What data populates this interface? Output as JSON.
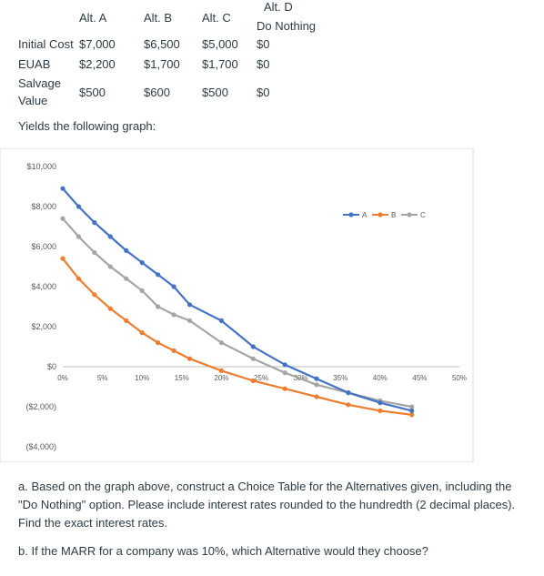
{
  "table": {
    "headers": {
      "alt_a": "Alt. A",
      "alt_b": "Alt. B",
      "alt_c": "Alt. C",
      "alt_d_line1": "Alt. D",
      "alt_d_line2": "Do Nothing"
    },
    "rows": [
      {
        "label": "Initial Cost",
        "a": "$7,000",
        "b": "$6,500",
        "c": "$5,000",
        "d": "$0"
      },
      {
        "label": "EUAB",
        "a": "$2,200",
        "b": "$1,700",
        "c": "$1,700",
        "d": "$0"
      },
      {
        "label_line1": "Salvage",
        "label_line2": "Value",
        "a": "$500",
        "b": "$600",
        "c": "$500",
        "d": "$0"
      }
    ]
  },
  "caption": "Yields the following graph:",
  "chart_data": {
    "type": "line",
    "x": [
      0,
      2,
      4,
      6,
      8,
      10,
      12,
      14,
      16,
      20,
      24,
      28,
      32,
      36,
      40,
      44
    ],
    "x_ticks": [
      "0%",
      "5%",
      "10%",
      "15%",
      "20%",
      "25%",
      "30%",
      "35%",
      "40%",
      "45%",
      "50%"
    ],
    "x_tick_values": [
      0,
      5,
      10,
      15,
      20,
      25,
      30,
      35,
      40,
      45,
      50
    ],
    "y_ticks": [
      "$10,000",
      "$8,000",
      "$6,000",
      "$4,000",
      "$2,000",
      "$0",
      "($2,000)",
      "($4,000)"
    ],
    "y_tick_values": [
      10000,
      8000,
      6000,
      4000,
      2000,
      0,
      -2000,
      -4000
    ],
    "ylim": [
      -4000,
      10000
    ],
    "xlim": [
      0,
      50
    ],
    "legend_position": "top-right",
    "series": [
      {
        "name": "A",
        "color": "#4472c4",
        "values": [
          8900,
          8000,
          7200,
          6500,
          5800,
          5200,
          4600,
          4000,
          3100,
          2300,
          1000,
          100,
          -600,
          -1300,
          -1800,
          -2200
        ]
      },
      {
        "name": "B",
        "color": "#ed7d31",
        "values": [
          5400,
          4400,
          3600,
          2900,
          2300,
          1700,
          1200,
          800,
          400,
          -200,
          -700,
          -1100,
          -1500,
          -1900,
          -2200,
          -2400
        ]
      },
      {
        "name": "C",
        "color": "#a5a5a5",
        "values": [
          7400,
          6500,
          5700,
          5000,
          4400,
          3800,
          3000,
          2600,
          2300,
          1200,
          400,
          -300,
          -900,
          -1300,
          -1700,
          -2000
        ]
      }
    ]
  },
  "questions": {
    "a": "a. Based on the graph above, construct a Choice Table for the Alternatives given, including the \"Do Nothing\" option. Please include interest rates rounded to the hundredth (2 decimal places). Find the exact interest rates.",
    "b": "b. If the MARR for a company was 10%, which Alternative would they choose?"
  }
}
